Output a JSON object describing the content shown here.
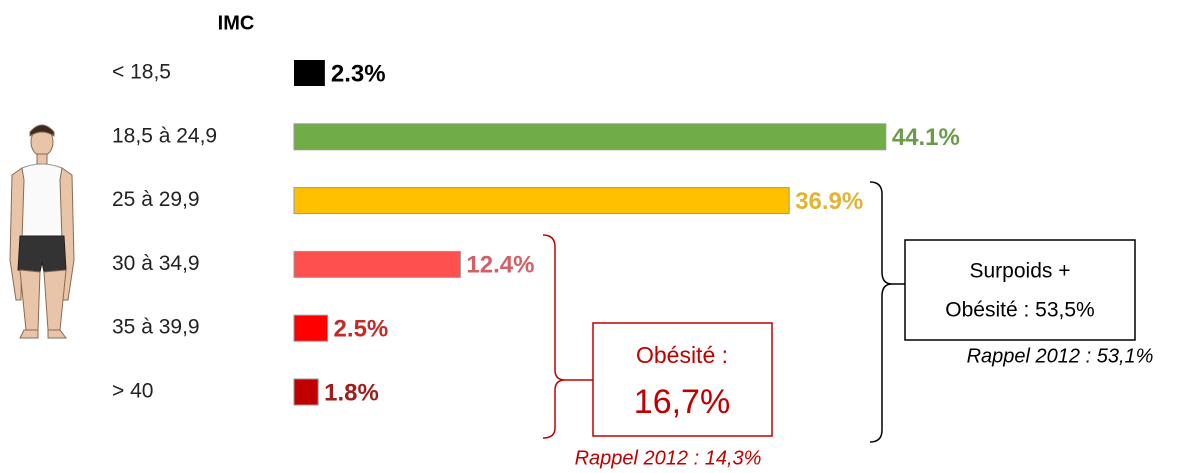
{
  "chart_data": {
    "type": "hbar",
    "axis_title": "IMC",
    "categories": [
      "< 18,5",
      "18,5 à 24,9",
      "25 à 29,9",
      "30 à 34,9",
      "35 à 39,9",
      "> 40"
    ],
    "values": [
      2.3,
      44.1,
      36.9,
      12.4,
      2.5,
      1.8
    ],
    "value_labels": [
      "2.3%",
      "44.1%",
      "36.9%",
      "12.4%",
      "2.5%",
      "1.8%"
    ],
    "colors": [
      "#000000",
      "#70ad47",
      "#ffc000",
      "#ff5050",
      "#ff0000",
      "#c00000"
    ],
    "label_colors": [
      "#000000",
      "#6a9a4c",
      "#e0b435",
      "#d45f66",
      "#c42a2a",
      "#9e1c1c"
    ],
    "annotations": {
      "overweight": [
        "Surpoids +",
        "Obésité : 53,5%"
      ],
      "overweight_recall": "Rappel 2012 : 53,1%",
      "obesity": [
        "Obésité :",
        "16,7%"
      ],
      "obesity_recall": "Rappel 2012 : 14,3%"
    }
  }
}
